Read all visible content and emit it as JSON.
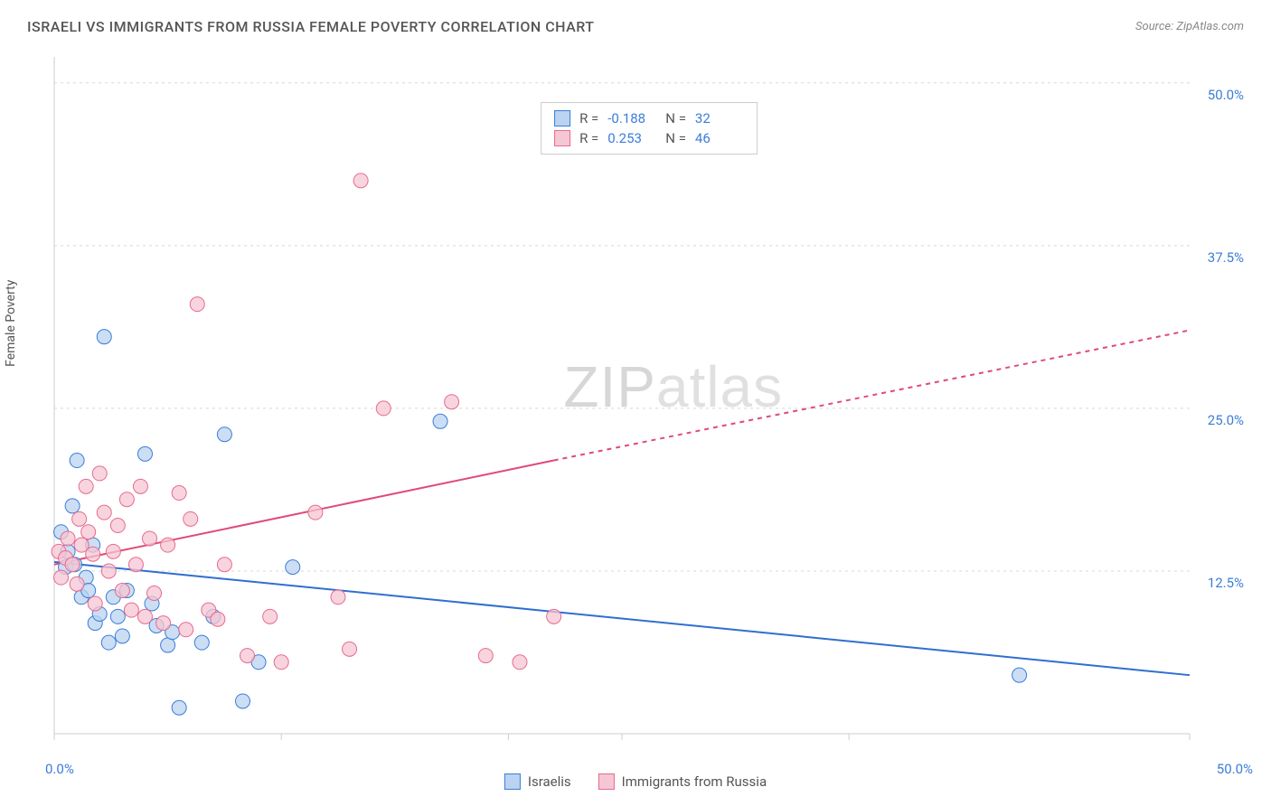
{
  "title": "ISRAELI VS IMMIGRANTS FROM RUSSIA FEMALE POVERTY CORRELATION CHART",
  "source": "Source: ZipAtlas.com",
  "y_axis_label": "Female Poverty",
  "watermark": {
    "bold": "ZIP",
    "light": "atlas"
  },
  "chart": {
    "type": "scatter",
    "xlim": [
      0,
      50
    ],
    "ylim": [
      0,
      52
    ],
    "background_color": "#ffffff",
    "grid_color": "#d8d8d8",
    "axis_color": "#cccccc",
    "tick_label_color": "#3b7dd8",
    "y_ticks": [
      12.5,
      25.0,
      37.5,
      50.0
    ],
    "y_tick_labels": [
      "12.5%",
      "25.0%",
      "37.5%",
      "50.0%"
    ],
    "x_ticks": [
      0,
      10,
      20,
      25,
      35,
      50
    ],
    "x_axis_start_label": "0.0%",
    "x_axis_end_label": "50.0%",
    "series": [
      {
        "name": "Israelis",
        "label": "Israelis",
        "color_fill": "#b9d3f0",
        "color_stroke": "#3b7dd8",
        "marker_radius": 8,
        "marker_opacity": 0.75,
        "R": "-0.188",
        "N": "32",
        "trend": {
          "solid_from": [
            0,
            13.2
          ],
          "solid_to": [
            50,
            4.5
          ],
          "dashed_to": null,
          "color": "#2f6fd0",
          "width": 2
        },
        "points": [
          [
            0.3,
            15.5
          ],
          [
            0.5,
            12.8
          ],
          [
            0.6,
            14.0
          ],
          [
            0.8,
            17.5
          ],
          [
            0.9,
            13.0
          ],
          [
            1.0,
            21.0
          ],
          [
            1.2,
            10.5
          ],
          [
            1.4,
            12.0
          ],
          [
            1.5,
            11.0
          ],
          [
            1.7,
            14.5
          ],
          [
            1.8,
            8.5
          ],
          [
            2.0,
            9.2
          ],
          [
            2.2,
            30.5
          ],
          [
            2.4,
            7.0
          ],
          [
            2.6,
            10.5
          ],
          [
            2.8,
            9.0
          ],
          [
            3.0,
            7.5
          ],
          [
            3.2,
            11.0
          ],
          [
            4.0,
            21.5
          ],
          [
            4.3,
            10.0
          ],
          [
            4.5,
            8.3
          ],
          [
            5.0,
            6.8
          ],
          [
            5.2,
            7.8
          ],
          [
            5.5,
            2.0
          ],
          [
            6.5,
            7.0
          ],
          [
            7.0,
            9.0
          ],
          [
            7.5,
            23.0
          ],
          [
            8.3,
            2.5
          ],
          [
            9.0,
            5.5
          ],
          [
            10.5,
            12.8
          ],
          [
            17.0,
            24.0
          ],
          [
            42.5,
            4.5
          ]
        ]
      },
      {
        "name": "Immigrants from Russia",
        "label": "Immigrants from Russia",
        "color_fill": "#f5c6d3",
        "color_stroke": "#e86a8f",
        "marker_radius": 8,
        "marker_opacity": 0.75,
        "R": "0.253",
        "N": "46",
        "trend": {
          "solid_from": [
            0,
            13.0
          ],
          "solid_to": [
            22,
            21.0
          ],
          "dashed_to": [
            50,
            31.0
          ],
          "color": "#e04a78",
          "width": 2
        },
        "points": [
          [
            0.2,
            14.0
          ],
          [
            0.3,
            12.0
          ],
          [
            0.5,
            13.5
          ],
          [
            0.6,
            15.0
          ],
          [
            0.8,
            13.0
          ],
          [
            1.0,
            11.5
          ],
          [
            1.1,
            16.5
          ],
          [
            1.2,
            14.5
          ],
          [
            1.4,
            19.0
          ],
          [
            1.5,
            15.5
          ],
          [
            1.7,
            13.8
          ],
          [
            1.8,
            10.0
          ],
          [
            2.0,
            20.0
          ],
          [
            2.2,
            17.0
          ],
          [
            2.4,
            12.5
          ],
          [
            2.6,
            14.0
          ],
          [
            2.8,
            16.0
          ],
          [
            3.0,
            11.0
          ],
          [
            3.2,
            18.0
          ],
          [
            3.4,
            9.5
          ],
          [
            3.6,
            13.0
          ],
          [
            3.8,
            19.0
          ],
          [
            4.0,
            9.0
          ],
          [
            4.2,
            15.0
          ],
          [
            4.4,
            10.8
          ],
          [
            4.8,
            8.5
          ],
          [
            5.0,
            14.5
          ],
          [
            5.5,
            18.5
          ],
          [
            5.8,
            8.0
          ],
          [
            6.0,
            16.5
          ],
          [
            6.3,
            33.0
          ],
          [
            6.8,
            9.5
          ],
          [
            7.2,
            8.8
          ],
          [
            7.5,
            13.0
          ],
          [
            8.5,
            6.0
          ],
          [
            9.5,
            9.0
          ],
          [
            10.0,
            5.5
          ],
          [
            11.5,
            17.0
          ],
          [
            12.5,
            10.5
          ],
          [
            13.0,
            6.5
          ],
          [
            13.5,
            42.5
          ],
          [
            14.5,
            25.0
          ],
          [
            17.5,
            25.5
          ],
          [
            19.0,
            6.0
          ],
          [
            20.5,
            5.5
          ],
          [
            22.0,
            9.0
          ]
        ]
      }
    ]
  },
  "stats_box": {
    "R_label": "R =",
    "N_label": "N ="
  },
  "legend": {
    "series1": "Israelis",
    "series2": "Immigrants from Russia"
  }
}
